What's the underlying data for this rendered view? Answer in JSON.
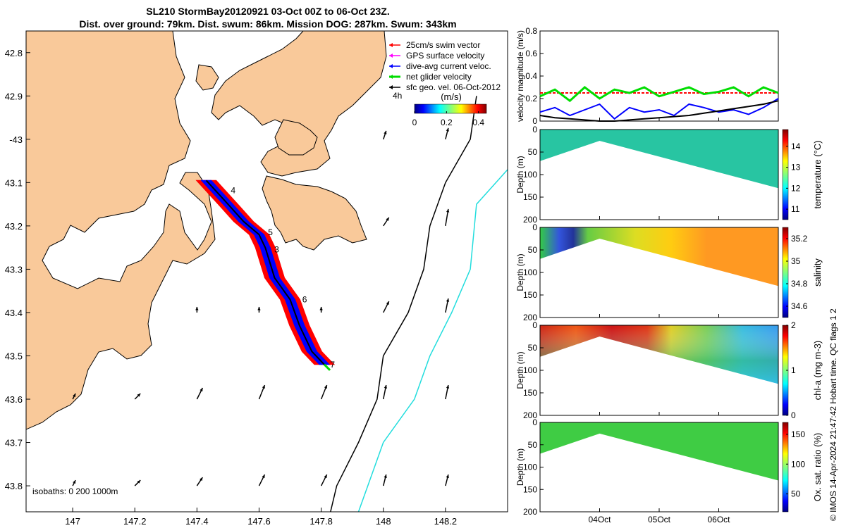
{
  "header": {
    "title_line1": "SL210 StormBay20120921 03-Oct 00Z to 06-Oct 23Z.",
    "title_line2": "Dist. over ground: 79km. Dist. swum: 86km. Mission DOG: 287km. Swum: 343km"
  },
  "colors": {
    "land": "#f9c99a",
    "water": "#ffffff",
    "track_red": "#ff0000",
    "track_blue": "#0000ff",
    "glider_green": "#00dd00",
    "isobath_200": "#000000",
    "isobath_1000": "#22dddd",
    "swim_red": "#ff0000",
    "gps_magenta": "#ff00ff"
  },
  "chart_data": [
    {
      "type": "map",
      "title": "SL210 StormBay20120921 03-Oct 00Z to 06-Oct 23Z.",
      "xlim": [
        146.85,
        148.4
      ],
      "ylim": [
        43.86,
        42.75
      ],
      "xticks": [
        147,
        147.2,
        147.4,
        147.6,
        147.8,
        148,
        148.2
      ],
      "xtick_labels": [
        "147",
        "147.2",
        "147.4",
        "147.6",
        "147.8",
        "148",
        "148.2"
      ],
      "yticks": [
        42.8,
        42.9,
        43.0,
        43.1,
        43.2,
        43.3,
        43.4,
        43.5,
        43.6,
        43.7,
        43.8
      ],
      "ytick_labels": [
        "42.8",
        "42.9",
        "-43",
        "43.1",
        "43.2",
        "43.3",
        "43.4",
        "43.5",
        "43.6",
        "43.7",
        "43.8"
      ],
      "legend": {
        "placement": "top-right",
        "entries": [
          {
            "label": "25cm/s swim vector",
            "color": "#ff0000"
          },
          {
            "label": "GPS surface velocity",
            "color": "#ff00ff"
          },
          {
            "label": "dive-avg current veloc.",
            "color": "#0000ff"
          },
          {
            "label": "net glider velocity",
            "color": "#00dd00"
          },
          {
            "label": "sfc geo. vel. 06-Oct-2012",
            "color": "#000000"
          }
        ]
      },
      "colorbar": {
        "label": "(m/s)",
        "ticks": [
          "0",
          "0.2",
          "0.4"
        ],
        "range": [
          0,
          0.45
        ],
        "time_label": "4h"
      },
      "isobath_label": "isobaths: 0   200  1000m",
      "glider_track": [
        [
          147.43,
          43.095
        ],
        [
          147.5,
          43.15
        ],
        [
          147.55,
          43.19
        ],
        [
          147.6,
          43.22
        ],
        [
          147.62,
          43.25
        ],
        [
          147.65,
          43.32
        ],
        [
          147.7,
          43.37
        ],
        [
          147.73,
          43.43
        ],
        [
          147.77,
          43.49
        ],
        [
          147.81,
          43.52
        ]
      ],
      "day_markers": [
        {
          "label": "4",
          "lon": 147.5,
          "lat": 43.118
        },
        {
          "label": "5",
          "lon": 147.62,
          "lat": 43.215
        },
        {
          "label": "3",
          "lon": 147.64,
          "lat": 43.255
        },
        {
          "label": "6",
          "lon": 147.73,
          "lat": 43.37
        },
        {
          "label": "7",
          "lon": 147.82,
          "lat": 43.52
        }
      ],
      "surface_vectors": [
        {
          "lon": 147.4,
          "lat": 43.4,
          "u": 0.0,
          "v": 0.02
        },
        {
          "lon": 147.6,
          "lat": 43.4,
          "u": 0.0,
          "v": 0.02
        },
        {
          "lon": 147.8,
          "lat": 43.4,
          "u": 0.0,
          "v": 0.02
        },
        {
          "lon": 148.0,
          "lat": 43.4,
          "u": 0.02,
          "v": 0.04
        },
        {
          "lon": 148.2,
          "lat": 43.4,
          "u": 0.01,
          "v": 0.05
        },
        {
          "lon": 148.2,
          "lat": 43.2,
          "u": 0.01,
          "v": 0.06
        },
        {
          "lon": 148.0,
          "lat": 43.2,
          "u": 0.02,
          "v": 0.03
        },
        {
          "lon": 148.2,
          "lat": 43.0,
          "u": 0.01,
          "v": 0.04
        },
        {
          "lon": 148.0,
          "lat": 43.0,
          "u": 0.01,
          "v": 0.03
        },
        {
          "lon": 147.0,
          "lat": 43.6,
          "u": 0.01,
          "v": 0.02
        },
        {
          "lon": 147.2,
          "lat": 43.6,
          "u": 0.02,
          "v": 0.02
        },
        {
          "lon": 147.4,
          "lat": 43.6,
          "u": 0.02,
          "v": 0.04
        },
        {
          "lon": 147.6,
          "lat": 43.6,
          "u": 0.02,
          "v": 0.05
        },
        {
          "lon": 147.8,
          "lat": 43.6,
          "u": 0.02,
          "v": 0.05
        },
        {
          "lon": 148.0,
          "lat": 43.6,
          "u": 0.01,
          "v": 0.05
        },
        {
          "lon": 148.2,
          "lat": 43.6,
          "u": 0.01,
          "v": 0.05
        },
        {
          "lon": 147.0,
          "lat": 43.8,
          "u": 0.01,
          "v": 0.02
        },
        {
          "lon": 147.2,
          "lat": 43.8,
          "u": 0.02,
          "v": 0.02
        },
        {
          "lon": 147.4,
          "lat": 43.8,
          "u": 0.02,
          "v": 0.03
        },
        {
          "lon": 147.6,
          "lat": 43.8,
          "u": 0.02,
          "v": 0.04
        },
        {
          "lon": 147.8,
          "lat": 43.8,
          "u": 0.02,
          "v": 0.04
        },
        {
          "lon": 148.0,
          "lat": 43.8,
          "u": 0.01,
          "v": 0.04
        },
        {
          "lon": 148.2,
          "lat": 43.8,
          "u": 0.01,
          "v": 0.04
        }
      ],
      "isobath_200": [
        [
          148.3,
          42.9
        ],
        [
          148.28,
          43.0
        ],
        [
          148.2,
          43.1
        ],
        [
          148.15,
          43.2
        ],
        [
          148.13,
          43.3
        ],
        [
          148.08,
          43.4
        ],
        [
          148.0,
          43.5
        ],
        [
          147.98,
          43.6
        ],
        [
          147.92,
          43.7
        ],
        [
          147.85,
          43.8
        ],
        [
          147.83,
          43.86
        ]
      ],
      "isobath_1000": [
        [
          148.4,
          43.07
        ],
        [
          148.3,
          43.15
        ],
        [
          148.28,
          43.3
        ],
        [
          148.22,
          43.4
        ],
        [
          148.15,
          43.5
        ],
        [
          148.1,
          43.6
        ],
        [
          148.0,
          43.7
        ],
        [
          147.95,
          43.8
        ],
        [
          147.92,
          43.86
        ]
      ]
    },
    {
      "type": "line",
      "ylabel": "velocity magnitude (m/s)",
      "ylim": [
        0,
        0.8
      ],
      "yticks": [
        0,
        0.2,
        0.4,
        0.6,
        0.8
      ],
      "ytick_labels": [
        "0",
        "0.2",
        "0.4",
        "0.6",
        "0.8"
      ],
      "x": [
        0,
        0.25,
        0.5,
        0.75,
        1.0,
        1.25,
        1.5,
        1.75,
        2.0,
        2.25,
        2.5,
        2.75,
        3.0,
        3.25,
        3.5,
        3.75,
        4.0
      ],
      "series": [
        {
          "name": "25cm/s swim vector",
          "color": "#ff0000",
          "values": [
            0.25,
            0.25,
            0.25,
            0.25,
            0.25,
            0.25,
            0.25,
            0.25,
            0.25,
            0.25,
            0.25,
            0.25,
            0.25,
            0.25,
            0.25,
            0.25,
            0.25
          ]
        },
        {
          "name": "net glider velocity",
          "color": "#00dd00",
          "values": [
            0.22,
            0.28,
            0.18,
            0.3,
            0.2,
            0.28,
            0.25,
            0.3,
            0.22,
            0.26,
            0.3,
            0.24,
            0.26,
            0.3,
            0.22,
            0.3,
            0.25
          ]
        },
        {
          "name": "dive-avg current veloc.",
          "color": "#0000ff",
          "values": [
            0.08,
            0.12,
            0.05,
            0.1,
            0.15,
            0.02,
            0.12,
            0.08,
            0.1,
            0.05,
            0.15,
            0.12,
            0.08,
            0.1,
            0.06,
            0.12,
            0.2
          ]
        },
        {
          "name": "sfc geo. vel.",
          "color": "#000000",
          "values": [
            0.05,
            0.03,
            0.02,
            0.01,
            0.0,
            0.0,
            0.01,
            0.02,
            0.03,
            0.04,
            0.05,
            0.07,
            0.09,
            0.11,
            0.13,
            0.15,
            0.18
          ]
        }
      ]
    },
    {
      "type": "heatmap",
      "ylabel": "Depth (m)",
      "cbar_label": "temperature (°C)",
      "ylim": [
        0,
        200
      ],
      "yticks": [
        0,
        50,
        100,
        150,
        200
      ],
      "ytick_labels": [
        "0",
        "50",
        "100",
        "150",
        "200"
      ],
      "cbar_ticks": [
        "14",
        "13",
        "12",
        "11"
      ],
      "cbar_range": [
        10.5,
        14.8
      ],
      "depth_profile": [
        [
          0,
          70
        ],
        [
          1,
          25
        ],
        [
          3.8,
          130
        ]
      ]
    },
    {
      "type": "heatmap",
      "ylabel": "Depth (m)",
      "cbar_label": "salinity",
      "ylim": [
        0,
        200
      ],
      "yticks": [
        0,
        50,
        100,
        150,
        200
      ],
      "ytick_labels": [
        "0",
        "50",
        "100",
        "150",
        "200"
      ],
      "cbar_ticks": [
        "35.2",
        "35",
        "34.8",
        "34.6"
      ],
      "cbar_range": [
        34.5,
        35.3
      ]
    },
    {
      "type": "heatmap",
      "ylabel": "Depth (m)",
      "cbar_label": "chl-a (mg m-3)",
      "ylim": [
        0,
        200
      ],
      "yticks": [
        0,
        50,
        100,
        150,
        200
      ],
      "ytick_labels": [
        "0",
        "50",
        "100",
        "150",
        "200"
      ],
      "cbar_ticks": [
        "2",
        "1",
        "0"
      ],
      "cbar_range": [
        0,
        2
      ]
    },
    {
      "type": "heatmap",
      "ylabel": "Depth (m)",
      "cbar_label": "Ox. sat. ratio (%)",
      "ylim": [
        0,
        200
      ],
      "yticks": [
        0,
        50,
        100,
        150,
        200
      ],
      "ytick_labels": [
        "0",
        "50",
        "100",
        "150",
        "200"
      ],
      "cbar_ticks": [
        "150",
        "100",
        "50"
      ],
      "cbar_range": [
        20,
        170
      ],
      "xticks": [
        "04Oct",
        "05Oct",
        "06Oct"
      ]
    }
  ],
  "side_note": "© IMOS 14-Apr-2024 21:47:42 Hobart time. QC flags 1  2"
}
